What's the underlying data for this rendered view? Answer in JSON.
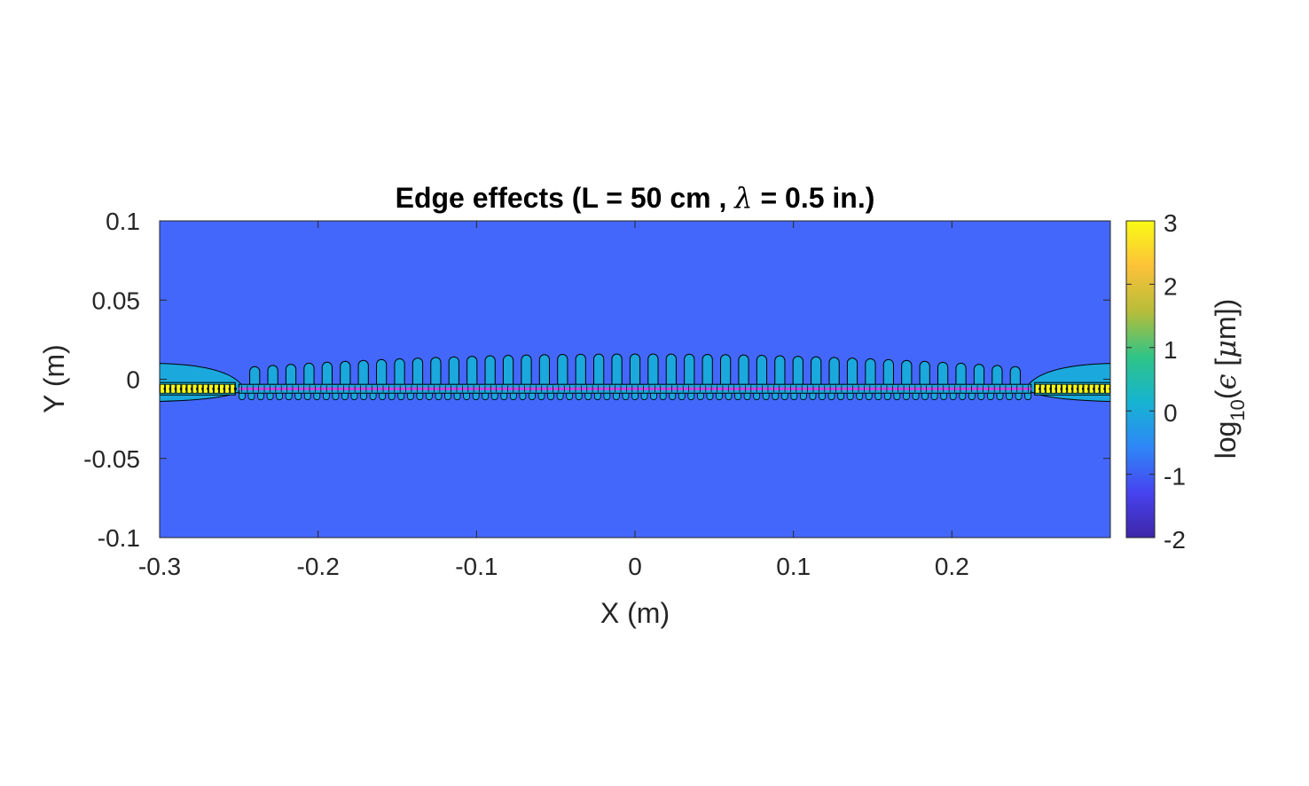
{
  "chart_data": {
    "type": "heatmap",
    "title": {
      "prefix": "Edge effects (L = 50 cm , ",
      "symbol": "λ",
      "suffix": " = 0.5 in.)"
    },
    "xlabel": "X (m)",
    "ylabel": "Y (m)",
    "xlim": [
      -0.3,
      0.3
    ],
    "ylim": [
      -0.1,
      0.1
    ],
    "xticks": [
      -0.3,
      -0.2,
      -0.1,
      0,
      0.1,
      0.2
    ],
    "xtick_labels": [
      "-0.3",
      "-0.2",
      "-0.1",
      "0",
      "0.1",
      "0.2"
    ],
    "yticks": [
      0.1,
      0.05,
      0,
      -0.05,
      -0.1
    ],
    "ytick_labels": [
      "0.1",
      "0.05",
      "0",
      "-0.05",
      "-0.1"
    ],
    "colorbar": {
      "label": {
        "base": "log",
        "sub": "10",
        "open": "(",
        "symbol": "ϵ",
        "unit_open": " [",
        "unit_symbol": "μ",
        "unit": "m])"
      },
      "limits": [
        -2,
        3
      ],
      "ticks": [
        3,
        2,
        1,
        0,
        -1,
        -2
      ],
      "tick_labels": [
        "3",
        "2",
        "1",
        "0",
        "-1",
        "-2"
      ],
      "colormap": "parula",
      "colormap_stops": [
        "#3e26a8",
        "#4743f0",
        "#2e87f7",
        "#16b4d1",
        "#2fc486",
        "#b7bd39",
        "#fcc239",
        "#f9fb14"
      ]
    },
    "background_level": -0.9,
    "background_color": "#4467fb",
    "lobe_color": "#1aa8dd",
    "strip_line_color": "#d13de3",
    "conductor": {
      "x_start": -0.25,
      "x_end": 0.25,
      "y": -0.006
    },
    "lobes": {
      "count": 43,
      "x_start": -0.24,
      "x_end": 0.24,
      "y_top_center": 0.016,
      "y_top_edge": 0.008,
      "y_bottom": -0.013,
      "level": 0.3
    },
    "edge_regions": [
      {
        "x_start": -0.3,
        "x_end": -0.25,
        "y_top": 0.01,
        "y_bottom": -0.014,
        "peak_level": 3
      },
      {
        "x_start": 0.25,
        "x_end": 0.3,
        "y_top": 0.01,
        "y_bottom": -0.014,
        "peak_level": 3
      }
    ]
  }
}
